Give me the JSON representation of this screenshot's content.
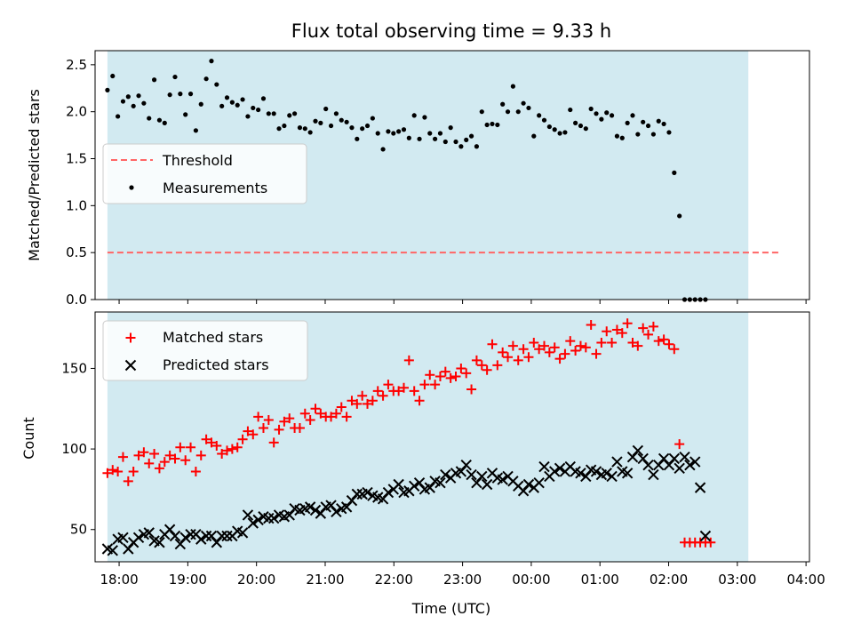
{
  "title": "Flux total observing time = 9.33 h",
  "colors": {
    "shade": "#add8e6",
    "threshold": "#ff6666",
    "measurements": "#000000",
    "matched": "#ff0000",
    "predicted": "#000000"
  },
  "chart_data": [
    {
      "type": "scatter",
      "ylabel": "Matched/Predicted stars",
      "ylim": [
        0,
        2.65
      ],
      "yticks": [
        "0.0",
        "0.5",
        "1.0",
        "1.5",
        "2.0",
        "2.5"
      ],
      "xlim_hours": [
        17.65,
        28.05
      ],
      "shaded_span_hours": [
        17.83,
        27.16
      ],
      "legend": {
        "placement": "center-left",
        "entries": [
          "Threshold",
          "Measurements"
        ]
      },
      "threshold": {
        "name": "Threshold",
        "value": 0.5,
        "x_hours": [
          17.83,
          27.6
        ],
        "style": "dashed"
      },
      "series": [
        {
          "name": "Measurements",
          "x_start_hours": 17.83,
          "x_step_hours": 0.0757,
          "values": [
            2.23,
            2.38,
            1.95,
            2.11,
            2.16,
            2.06,
            2.17,
            2.09,
            1.93,
            2.34,
            1.91,
            1.88,
            2.18,
            2.37,
            2.19,
            1.97,
            2.19,
            1.8,
            2.08,
            2.35,
            2.54,
            2.29,
            2.06,
            2.15,
            2.1,
            2.07,
            2.13,
            1.95,
            2.04,
            2.02,
            2.14,
            1.98,
            1.98,
            1.82,
            1.85,
            1.96,
            1.98,
            1.83,
            1.82,
            1.78,
            1.9,
            1.88,
            2.03,
            1.85,
            1.98,
            1.91,
            1.89,
            1.83,
            1.71,
            1.82,
            1.85,
            1.93,
            1.77,
            1.6,
            1.79,
            1.77,
            1.79,
            1.81,
            1.72,
            1.96,
            1.71,
            1.94,
            1.77,
            1.71,
            1.77,
            1.68,
            1.83,
            1.68,
            1.63,
            1.7,
            1.74,
            1.63,
            2.0,
            1.86,
            1.87,
            1.86,
            2.08,
            2.0,
            2.27,
            2.0,
            2.09,
            2.04,
            1.74,
            1.96,
            1.91,
            1.84,
            1.81,
            1.77,
            1.78,
            2.02,
            1.88,
            1.85,
            1.82,
            2.03,
            1.98,
            1.92,
            1.99,
            1.96,
            1.74,
            1.72,
            1.88,
            1.96,
            1.76,
            1.89,
            1.85,
            1.76,
            1.9,
            1.87,
            1.78,
            1.35,
            0.89,
            0.0,
            0.0,
            0.0,
            0.0,
            0.0
          ]
        }
      ]
    },
    {
      "type": "scatter",
      "xlabel": "Time (UTC)",
      "ylabel": "Count",
      "ylim": [
        30,
        185
      ],
      "yticks": [
        "50",
        "100",
        "150"
      ],
      "xlim_hours": [
        17.65,
        28.05
      ],
      "xticks": [
        "18:00",
        "19:00",
        "20:00",
        "21:00",
        "22:00",
        "23:00",
        "00:00",
        "01:00",
        "02:00",
        "03:00",
        "04:00"
      ],
      "shaded_span_hours": [
        17.83,
        27.16
      ],
      "legend": {
        "placement": "top-left",
        "entries": [
          "Matched stars",
          "Predicted stars"
        ]
      },
      "series": [
        {
          "name": "Matched stars",
          "marker": "+",
          "x_start_hours": 17.83,
          "x_step_hours": 0.0757,
          "values": [
            85,
            87,
            86,
            95,
            80,
            86,
            96,
            98,
            91,
            97,
            88,
            92,
            96,
            94,
            101,
            93,
            101,
            86,
            96,
            106,
            104,
            102,
            97,
            99,
            100,
            101,
            106,
            111,
            109,
            120,
            113,
            118,
            104,
            112,
            117,
            119,
            113,
            113,
            122,
            118,
            125,
            122,
            120,
            120,
            122,
            126,
            120,
            130,
            128,
            133,
            128,
            130,
            136,
            133,
            140,
            136,
            136,
            138,
            155,
            136,
            130,
            140,
            146,
            140,
            145,
            148,
            144,
            145,
            150,
            147,
            137,
            155,
            152,
            149,
            165,
            152,
            160,
            157,
            164,
            155,
            162,
            157,
            166,
            162,
            164,
            160,
            163,
            156,
            159,
            167,
            161,
            164,
            163,
            177,
            159,
            166,
            173,
            166,
            174,
            172,
            178,
            166,
            164,
            175,
            171,
            176,
            167,
            168,
            165,
            162,
            103,
            42,
            42,
            42,
            42,
            42,
            42
          ]
        },
        {
          "name": "Predicted stars",
          "marker": "x",
          "x_start_hours": 17.83,
          "x_step_hours": 0.0757,
          "values": [
            38,
            37,
            44,
            45,
            38,
            42,
            45,
            47,
            48,
            43,
            42,
            47,
            50,
            46,
            41,
            45,
            47,
            47,
            44,
            46,
            46,
            42,
            46,
            46,
            46,
            49,
            48,
            59,
            54,
            56,
            58,
            57,
            57,
            59,
            58,
            59,
            63,
            62,
            63,
            64,
            62,
            60,
            64,
            65,
            61,
            63,
            64,
            68,
            72,
            72,
            73,
            71,
            70,
            69,
            73,
            75,
            78,
            73,
            74,
            77,
            79,
            75,
            76,
            80,
            79,
            84,
            82,
            85,
            86,
            90,
            84,
            79,
            83,
            78,
            85,
            82,
            81,
            83,
            80,
            77,
            74,
            78,
            76,
            79,
            89,
            83,
            86,
            88,
            86,
            89,
            86,
            85,
            83,
            87,
            86,
            84,
            85,
            83,
            92,
            86,
            85,
            95,
            99,
            94,
            90,
            84,
            90,
            94,
            90,
            94,
            88,
            95,
            90,
            92,
            76,
            46
          ]
        }
      ]
    }
  ]
}
